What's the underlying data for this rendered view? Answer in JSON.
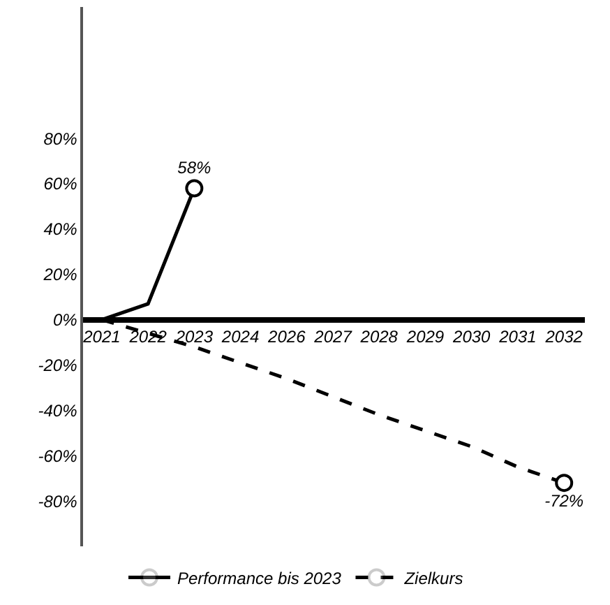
{
  "chart_data": {
    "type": "line",
    "categories": [
      "2021",
      "2022",
      "2023",
      "2024",
      "2026",
      "2027",
      "2028",
      "2029",
      "2030",
      "2031",
      "2032"
    ],
    "series": [
      {
        "name": "Performance bis 2023",
        "color": "#000000",
        "line_style": "solid",
        "values": [
          0,
          7,
          58,
          null,
          null,
          null,
          null,
          null,
          null,
          null,
          null
        ],
        "value_labels": [
          null,
          null,
          "58%",
          null,
          null,
          null,
          null,
          null,
          null,
          null,
          null
        ]
      },
      {
        "name": "Zielkurs",
        "color": "#000000",
        "line_style": "dashed",
        "values": [
          0,
          -6,
          -12,
          -19,
          -26,
          -34,
          -42,
          -49,
          -56,
          -65,
          -72
        ],
        "value_labels": [
          null,
          null,
          null,
          null,
          null,
          null,
          null,
          null,
          null,
          null,
          "-72%"
        ]
      }
    ],
    "ylim": [
      -100,
      138
    ],
    "yticks": [
      {
        "value": 80,
        "label": "80%"
      },
      {
        "value": 60,
        "label": "60%"
      },
      {
        "value": 40,
        "label": "40%"
      },
      {
        "value": 20,
        "label": "20%"
      },
      {
        "value": 0,
        "label": "0%"
      },
      {
        "value": -20,
        "label": "-20%"
      },
      {
        "value": -40,
        "label": "-40%"
      },
      {
        "value": -60,
        "label": "-60%"
      },
      {
        "value": -80,
        "label": "-80%"
      }
    ],
    "legend": "bottom"
  }
}
